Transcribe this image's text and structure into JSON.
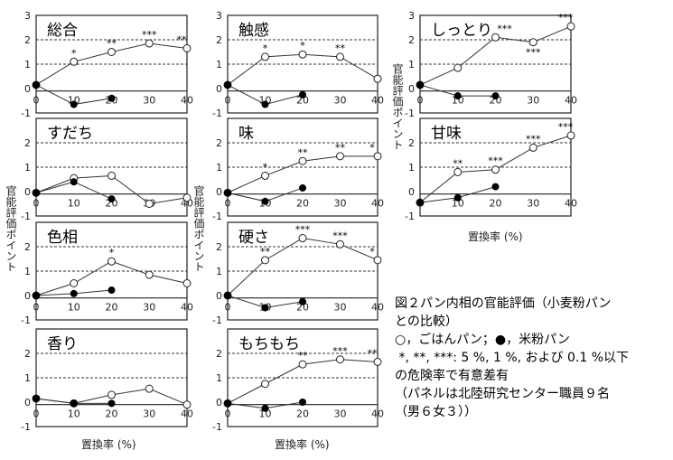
{
  "chart_data": {
    "type": "line",
    "xlabel": "置換率 (%)",
    "ylabel": "官能評価ポイント",
    "x_ticks": [
      "0",
      "10",
      "20",
      "30",
      "40"
    ],
    "y_ticks": [
      "3",
      "2",
      "1",
      "0",
      "-1"
    ],
    "ylim": [
      -1,
      3
    ],
    "xlim": [
      0,
      40
    ],
    "grid": "dashed horizontal at 1 and 2",
    "legend": {
      "open": "ごはんパン",
      "filled": "米粉パン"
    },
    "panels": [
      {
        "title": "総合",
        "open": [
          [
            0,
            0.15
          ],
          [
            10,
            1.1
          ],
          [
            20,
            1.5
          ],
          [
            30,
            1.85
          ],
          [
            40,
            1.65
          ]
        ],
        "filled": [
          [
            0,
            0.15
          ],
          [
            10,
            -0.65
          ],
          [
            20,
            -0.4
          ]
        ],
        "sig": [
          [
            10,
            "*"
          ],
          [
            20,
            "**"
          ],
          [
            30,
            "***"
          ],
          [
            40,
            "**"
          ]
        ]
      },
      {
        "title": "すだち",
        "open": [
          [
            0,
            -0.05
          ],
          [
            10,
            0.55
          ],
          [
            20,
            0.65
          ],
          [
            30,
            -0.5
          ],
          [
            40,
            -0.25
          ]
        ],
        "filled": [
          [
            0,
            -0.05
          ],
          [
            10,
            0.4
          ],
          [
            20,
            -0.3
          ]
        ],
        "sig": []
      },
      {
        "title": "色相",
        "open": [
          [
            0,
            0
          ],
          [
            10,
            0.5
          ],
          [
            20,
            1.4
          ],
          [
            30,
            0.85
          ],
          [
            40,
            0.5
          ]
        ],
        "filled": [
          [
            0,
            0
          ],
          [
            10,
            0.08
          ],
          [
            20,
            0.22
          ]
        ],
        "sig": [
          [
            20,
            "*"
          ]
        ]
      },
      {
        "title": "香り",
        "open": [
          [
            0,
            0.15
          ],
          [
            10,
            -0.05
          ],
          [
            20,
            0.3
          ],
          [
            30,
            0.55
          ],
          [
            40,
            -0.1
          ]
        ],
        "filled": [
          [
            0,
            0.15
          ],
          [
            10,
            -0.05
          ],
          [
            20,
            -0.05
          ]
        ],
        "sig": []
      },
      {
        "title": "触感",
        "open": [
          [
            0,
            0.15
          ],
          [
            10,
            1.3
          ],
          [
            20,
            1.4
          ],
          [
            30,
            1.3
          ],
          [
            40,
            0.4
          ]
        ],
        "filled": [
          [
            0,
            0.15
          ],
          [
            10,
            -0.65
          ],
          [
            20,
            -0.25
          ]
        ],
        "sig": [
          [
            10,
            "*"
          ],
          [
            20,
            "*"
          ],
          [
            30,
            "**"
          ]
        ]
      },
      {
        "title": "味",
        "open": [
          [
            0,
            -0.05
          ],
          [
            10,
            0.65
          ],
          [
            20,
            1.25
          ],
          [
            30,
            1.45
          ],
          [
            40,
            1.45
          ]
        ],
        "filled": [
          [
            0,
            -0.05
          ],
          [
            10,
            -0.4
          ],
          [
            20,
            0.15
          ]
        ],
        "sig": [
          [
            10,
            "*"
          ],
          [
            20,
            "**"
          ],
          [
            30,
            "**"
          ],
          [
            40,
            "*"
          ]
        ]
      },
      {
        "title": "硬さ",
        "open": [
          [
            0,
            0
          ],
          [
            10,
            1.45
          ],
          [
            20,
            2.35
          ],
          [
            30,
            2.1
          ],
          [
            40,
            1.45
          ]
        ],
        "filled": [
          [
            0,
            0
          ],
          [
            10,
            -0.5
          ],
          [
            20,
            -0.25
          ]
        ],
        "sig": [
          [
            10,
            "**"
          ],
          [
            20,
            "***"
          ],
          [
            30,
            "***"
          ],
          [
            40,
            "*"
          ]
        ]
      },
      {
        "title": "もちもち",
        "open": [
          [
            0,
            -0.05
          ],
          [
            10,
            0.75
          ],
          [
            20,
            1.55
          ],
          [
            30,
            1.75
          ],
          [
            40,
            1.65
          ]
        ],
        "filled": [
          [
            0,
            -0.05
          ],
          [
            10,
            -0.25
          ],
          [
            20,
            0.0
          ]
        ],
        "sig": [
          [
            20,
            "**"
          ],
          [
            30,
            "***"
          ],
          [
            40,
            "**"
          ]
        ]
      },
      {
        "title": "しっとり",
        "open": [
          [
            0,
            0.15
          ],
          [
            10,
            0.85
          ],
          [
            20,
            2.1
          ],
          [
            30,
            1.9
          ],
          [
            40,
            2.55
          ]
        ],
        "filled": [
          [
            0,
            0.15
          ],
          [
            10,
            -0.3
          ],
          [
            20,
            -0.3
          ]
        ],
        "sig": [
          [
            20,
            "***"
          ],
          [
            30,
            "***"
          ],
          [
            40,
            "***"
          ]
        ]
      },
      {
        "title": "甘味",
        "open": [
          [
            0,
            -0.45
          ],
          [
            10,
            0.8
          ],
          [
            20,
            0.9
          ],
          [
            30,
            1.8
          ],
          [
            40,
            2.3
          ]
        ],
        "filled": [
          [
            0,
            -0.45
          ],
          [
            10,
            -0.25
          ],
          [
            20,
            0.2
          ]
        ],
        "sig": [
          [
            10,
            "**"
          ],
          [
            20,
            "***"
          ],
          [
            30,
            "***"
          ],
          [
            40,
            "***"
          ]
        ]
      }
    ]
  },
  "caption": {
    "lines": [
      "図２パン内相の官能評価（小麦粉パン",
      "との比較）",
      "○，ごはんパン；●，米粉パン",
      " *, **, ***: 5 %, 1 %, および 0.1 %以下",
      "の危険率で有意差有",
      "（パネルは北陸研究センター職員９名",
      "（男６女３））"
    ]
  }
}
